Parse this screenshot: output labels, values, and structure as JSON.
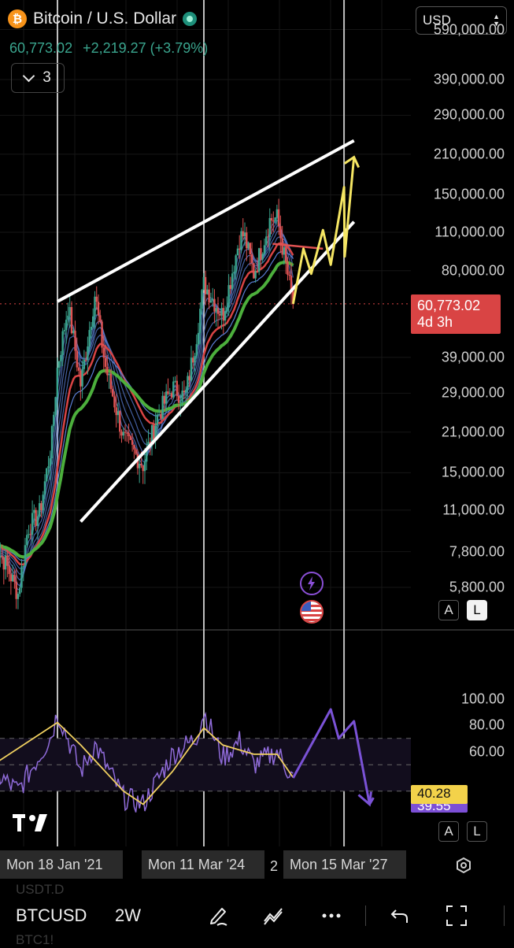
{
  "header": {
    "coin_symbol": "₿",
    "title": "Bitcoin / U.S. Dollar",
    "price": "60,773.02",
    "change": "+2,219.27 (+3.79%)",
    "collapse_count": "3",
    "currency": "USD"
  },
  "colors": {
    "background": "#000000",
    "channel_lines": "#ffffff",
    "projection": "#f5e663",
    "resistance": "#e05252",
    "ema_slow": "#4caf3c",
    "ema_mid": "#d94444",
    "ribbon": "#5b7fd6",
    "rsi_line": "#8f6bd9",
    "rsi_ma": "#f0d060",
    "price_tag": "#d94444"
  },
  "price_scale": {
    "labels": [
      "590,000.00",
      "390,000.00",
      "290,000.00",
      "210,000.00",
      "150,000.00",
      "110,000.00",
      "80,000.00",
      "39,000.00",
      "29,000.00",
      "21,000.00",
      "15,000.00",
      "11,000.00",
      "7,800.00",
      "5,800.00"
    ],
    "current_price": "60,773.02",
    "countdown": "4d 3h"
  },
  "indicator": {
    "scale_labels": [
      "100.00",
      "80.00",
      "60.00"
    ],
    "ma_value": "40.28",
    "rsi_value": "39.55",
    "upper_band": 70,
    "lower_band": 30
  },
  "x_axis": {
    "labels": [
      "Mon 18 Jan '21",
      "Mon 11 Mar '24",
      "Mon 15 Mar '27"
    ],
    "partial_label": "2"
  },
  "toolbar": {
    "symbol": "BTCUSD",
    "timeframe": "2W",
    "log_button": "L",
    "auto_button": "A",
    "watermark": "TV",
    "ghost_top": "USDT.D",
    "ghost_bottom": "BTC1!"
  },
  "chart_data": {
    "type": "line",
    "title": "Bitcoin / U.S. Dollar",
    "scale": "log",
    "y_range": [
      5000,
      600000
    ],
    "x_ticks": [
      "2021-01-18",
      "2024-03-11",
      "2027-03-15"
    ],
    "series": [
      {
        "name": "BTCUSD",
        "points": [
          [
            "2019-09-01",
            8300
          ],
          [
            "2019-12-01",
            7200
          ],
          [
            "2020-03-15",
            5500
          ],
          [
            "2020-06-01",
            9500
          ],
          [
            "2020-09-01",
            10800
          ],
          [
            "2020-12-01",
            19000
          ],
          [
            "2021-01-18",
            36000
          ],
          [
            "2021-04-12",
            60000
          ],
          [
            "2021-07-19",
            31000
          ],
          [
            "2021-11-08",
            66000
          ],
          [
            "2022-01-24",
            37000
          ],
          [
            "2022-06-20",
            20000
          ],
          [
            "2022-11-21",
            16000
          ],
          [
            "2023-03-13",
            24000
          ],
          [
            "2023-07-10",
            30500
          ],
          [
            "2023-10-16",
            28000
          ],
          [
            "2024-01-08",
            45000
          ],
          [
            "2024-03-11",
            72000
          ],
          [
            "2024-08-05",
            55000
          ],
          [
            "2024-12-16",
            105000
          ],
          [
            "2025-01-20",
            108000
          ],
          [
            "2025-04-07",
            78000
          ],
          [
            "2025-08-11",
            122000
          ],
          [
            "2025-10-06",
            124000
          ],
          [
            "2025-12-01",
            90000
          ],
          [
            "2026-02-09",
            60773.02
          ]
        ]
      }
    ],
    "annotations": {
      "channel_upper": [
        [
          "2021-01-18",
          62000
        ],
        [
          "2027-06-01",
          235000
        ]
      ],
      "channel_lower": [
        [
          "2021-07-19",
          10000
        ],
        [
          "2027-06-01",
          120000
        ]
      ],
      "resistance": [
        [
          "2025-09-01",
          100000
        ],
        [
          "2026-10-01",
          96000
        ]
      ],
      "projection": [
        [
          "2026-02-09",
          60773
        ],
        [
          "2026-05-01",
          96000
        ],
        [
          "2026-07-01",
          78000
        ],
        [
          "2026-10-01",
          112000
        ],
        [
          "2026-12-01",
          84000
        ],
        [
          "2027-03-15",
          160000
        ],
        [
          "2027-03-20",
          90000
        ],
        [
          "2027-06-01",
          205000
        ]
      ]
    },
    "rsi": {
      "scale": [
        0,
        100
      ],
      "rsi_points": [
        [
          "2019-09-01",
          45
        ],
        [
          "2020-03-15",
          30
        ],
        [
          "2020-12-01",
          72
        ],
        [
          "2021-01-18",
          90
        ],
        [
          "2021-07-19",
          45
        ],
        [
          "2021-11-08",
          65
        ],
        [
          "2022-06-20",
          25
        ],
        [
          "2022-11-21",
          20
        ],
        [
          "2023-07-10",
          58
        ],
        [
          "2024-01-08",
          70
        ],
        [
          "2024-03-11",
          90
        ],
        [
          "2024-08-05",
          55
        ],
        [
          "2024-12-16",
          68
        ],
        [
          "2025-04-07",
          50
        ],
        [
          "2025-10-06",
          60
        ],
        [
          "2026-02-09",
          39.55
        ]
      ],
      "ma_points": [
        [
          "2019-09-01",
          50
        ],
        [
          "2021-01-18",
          82
        ],
        [
          "2021-07-19",
          65
        ],
        [
          "2022-06-20",
          30
        ],
        [
          "2022-11-21",
          20
        ],
        [
          "2023-07-10",
          45
        ],
        [
          "2024-03-11",
          78
        ],
        [
          "2024-08-05",
          65
        ],
        [
          "2025-04-07",
          58
        ],
        [
          "2025-10-06",
          58
        ],
        [
          "2026-02-09",
          40.28
        ]
      ],
      "projection": [
        [
          "2026-02-09",
          40
        ],
        [
          "2026-12-01",
          92
        ],
        [
          "2027-02-01",
          70
        ],
        [
          "2027-06-01",
          83
        ],
        [
          "2027-10-01",
          20
        ],
        [
          "2027-11-01",
          25
        ]
      ]
    }
  }
}
